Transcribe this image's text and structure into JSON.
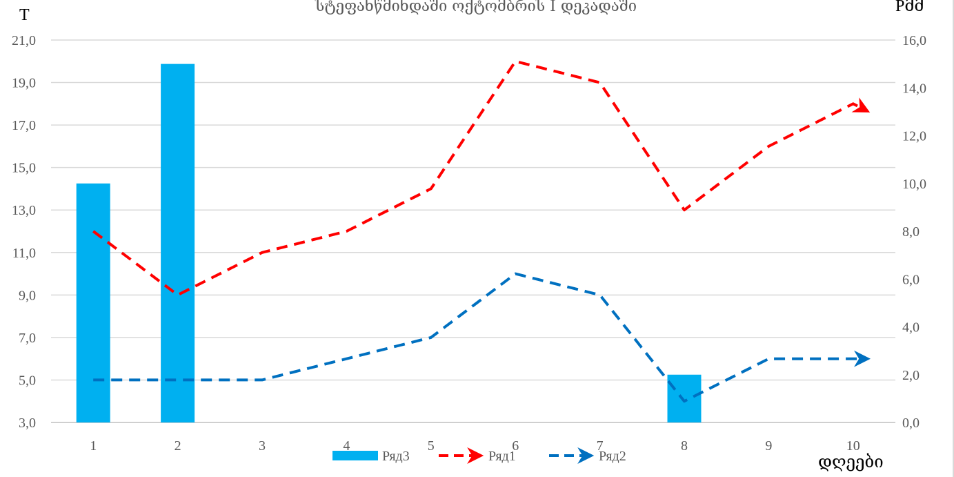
{
  "chart_data": {
    "type": "bar+line",
    "title": "სტეფანწმინდაში ოქტომბრის I დეკადაში",
    "categories": [
      "1",
      "2",
      "3",
      "4",
      "5",
      "6",
      "7",
      "8",
      "9",
      "10"
    ],
    "xlabel": "დღეები",
    "ylabel_left": "T",
    "ylabel_right": "Pმმ",
    "ylim_left": [
      3,
      21
    ],
    "yticks_left": [
      "3,0",
      "5,0",
      "7,0",
      "9,0",
      "11,0",
      "13,0",
      "15,0",
      "17,0",
      "19,0",
      "21,0"
    ],
    "ylim_right": [
      0,
      16
    ],
    "yticks_right": [
      "0,0",
      "2,0",
      "4,0",
      "6,0",
      "8,0",
      "10,0",
      "12,0",
      "14,0",
      "16,0"
    ],
    "grid": true,
    "legend_position": "bottom",
    "series": [
      {
        "name": "Ряд3",
        "kind": "bar",
        "axis": "right",
        "color": "#00b0f0",
        "values": [
          10.0,
          15.0,
          null,
          null,
          null,
          null,
          null,
          2.0,
          null,
          null
        ]
      },
      {
        "name": "Ряд1",
        "kind": "line",
        "axis": "left",
        "color": "#ff0000",
        "dash": true,
        "end_arrow": true,
        "values": [
          12.0,
          9.0,
          11.0,
          12.0,
          14.0,
          20.0,
          19.0,
          13.0,
          16.0,
          18.0
        ]
      },
      {
        "name": "Ряд2",
        "kind": "line",
        "axis": "left",
        "color": "#0070c0",
        "dash": true,
        "end_arrow": true,
        "values": [
          5.0,
          5.0,
          5.0,
          6.0,
          7.0,
          10.0,
          9.0,
          4.0,
          6.0,
          6.0
        ]
      }
    ]
  }
}
